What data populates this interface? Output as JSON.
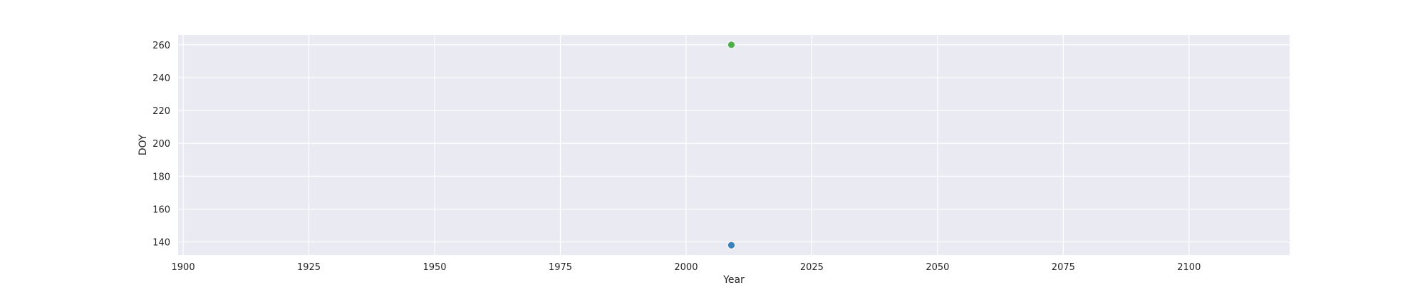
{
  "chart_data": {
    "type": "scatter",
    "title": "",
    "xlabel": "Year",
    "ylabel": "DOY",
    "xlim": [
      1899,
      2120
    ],
    "ylim": [
      132,
      266
    ],
    "xticks": [
      1900,
      1925,
      1950,
      1975,
      2000,
      2025,
      2050,
      2075,
      2100
    ],
    "yticks": [
      140,
      160,
      180,
      200,
      220,
      240,
      260
    ],
    "grid": true,
    "background": "#eaeaf2",
    "points": [
      {
        "x": 2009,
        "y": 138,
        "color": "#3a81ba"
      },
      {
        "x": 2009,
        "y": 260,
        "color": "#4daf4a"
      }
    ]
  }
}
